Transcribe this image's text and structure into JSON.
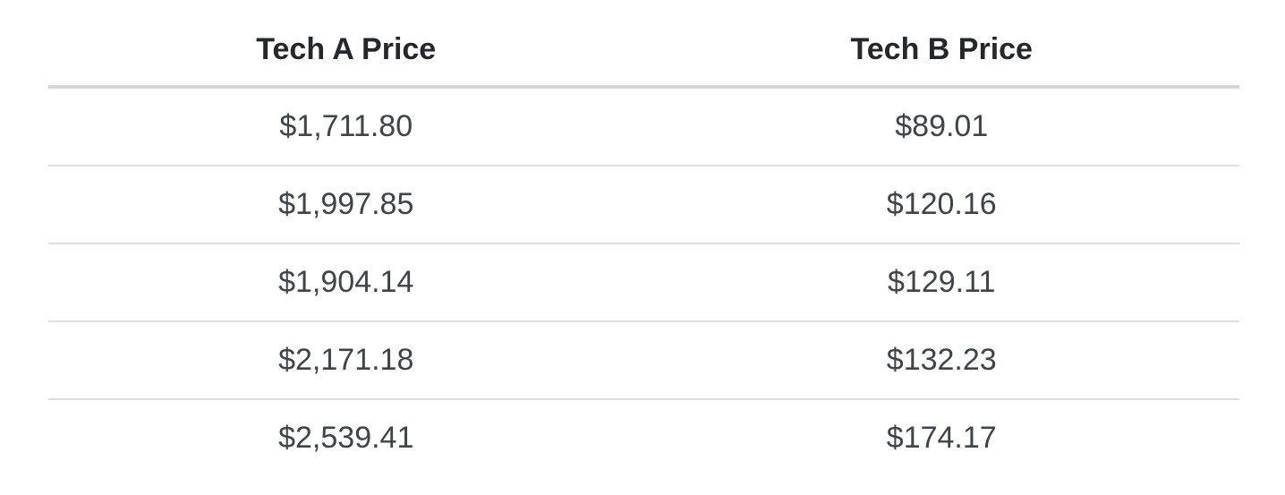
{
  "table": {
    "columns": [
      {
        "label": "Tech A Price"
      },
      {
        "label": "Tech B Price"
      }
    ],
    "rows": [
      [
        "$1,711.80",
        "$89.01"
      ],
      [
        "$1,997.85",
        "$120.16"
      ],
      [
        "$1,904.14",
        "$129.11"
      ],
      [
        "$2,171.18",
        "$132.23"
      ],
      [
        "$2,539.41",
        "$174.17"
      ]
    ]
  },
  "chart_data": {
    "type": "table",
    "title": "",
    "columns": [
      "Tech A Price",
      "Tech B Price"
    ],
    "rows": [
      [
        "$1,711.80",
        "$89.01"
      ],
      [
        "$1,997.85",
        "$120.16"
      ],
      [
        "$1,904.14",
        "$129.11"
      ],
      [
        "$2,171.18",
        "$132.23"
      ],
      [
        "$2,539.41",
        "$174.17"
      ]
    ],
    "series": [
      {
        "name": "Tech A Price",
        "values": [
          1711.8,
          1997.85,
          1904.14,
          2171.18,
          2539.41
        ]
      },
      {
        "name": "Tech B Price",
        "values": [
          89.01,
          120.16,
          129.11,
          132.23,
          174.17
        ]
      }
    ]
  },
  "colors": {
    "background": "#ffffff",
    "header_text": "#24272b",
    "cell_text": "#3f4449",
    "header_rule": "#d6d6d6",
    "row_rule": "#dedede"
  }
}
